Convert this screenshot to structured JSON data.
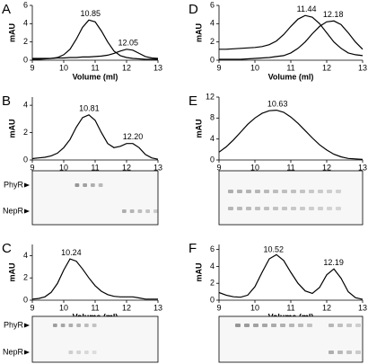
{
  "chart_data": [
    {
      "type": "line",
      "panel": "A",
      "ylabel": "mAU",
      "xlabel": "Volume (ml)",
      "x": [
        9,
        9.2,
        9.4,
        9.6,
        9.8,
        10,
        10.2,
        10.4,
        10.6,
        10.8,
        11,
        11.2,
        11.4,
        11.6,
        11.8,
        12,
        12.2,
        12.4,
        12.6,
        12.8,
        13
      ],
      "series": [
        {
          "color": "#000000",
          "values": [
            0.1,
            0.1,
            0.15,
            0.2,
            0.3,
            0.6,
            1.2,
            2.3,
            3.6,
            4.4,
            4.2,
            3.2,
            2.0,
            1.0,
            0.5,
            0.3,
            0.2,
            0.15,
            0.1,
            0.1,
            0.1
          ]
        },
        {
          "color": "#000000",
          "values": [
            0.2,
            0.2,
            0.2,
            0.2,
            0.25,
            0.25,
            0.3,
            0.3,
            0.35,
            0.35,
            0.4,
            0.45,
            0.55,
            0.75,
            1.0,
            1.2,
            1.1,
            0.75,
            0.4,
            0.25,
            0.2
          ]
        }
      ],
      "xlim": [
        9,
        13
      ],
      "ylim": [
        0,
        6
      ],
      "xticks": [
        9,
        10,
        11,
        12,
        13
      ],
      "yticks": [
        0,
        2,
        4,
        6
      ],
      "peaks": [
        10.85,
        12.05
      ]
    },
    {
      "type": "line",
      "panel": "B",
      "ylabel": "mAU",
      "x": [
        9,
        9.2,
        9.4,
        9.6,
        9.8,
        10,
        10.2,
        10.4,
        10.6,
        10.8,
        11,
        11.2,
        11.4,
        11.6,
        11.8,
        12,
        12.2,
        12.4,
        12.6,
        12.8,
        13
      ],
      "series": [
        {
          "color": "#000000",
          "values": [
            0.1,
            0.15,
            0.2,
            0.3,
            0.5,
            0.9,
            1.5,
            2.4,
            3.1,
            3.3,
            2.9,
            2.0,
            1.2,
            0.9,
            1.0,
            1.2,
            1.2,
            0.9,
            0.4,
            0.15,
            0.05
          ]
        }
      ],
      "xlim": [
        9,
        13
      ],
      "ylim": [
        0,
        4.6
      ],
      "xticks": [
        9,
        10,
        11,
        12,
        13
      ],
      "yticks": [
        0,
        2,
        4
      ],
      "peaks": [
        10.81,
        {
          "value": 12.2,
          "label": "12.20"
        }
      ],
      "gel_labels": [
        "PhyR",
        "NepR"
      ]
    },
    {
      "type": "line",
      "panel": "C",
      "ylabel": "mAU",
      "xlabel": "Volume (ml)",
      "x": [
        9,
        9.2,
        9.4,
        9.6,
        9.8,
        10,
        10.2,
        10.4,
        10.6,
        10.8,
        11,
        11.2,
        11.4,
        11.6,
        11.8,
        12,
        12.2,
        12.4,
        12.6,
        12.8,
        13
      ],
      "series": [
        {
          "color": "#000000",
          "values": [
            0.1,
            0.15,
            0.3,
            0.7,
            1.5,
            2.7,
            3.7,
            3.5,
            2.8,
            2.0,
            1.3,
            0.8,
            0.5,
            0.35,
            0.3,
            0.3,
            0.3,
            0.2,
            0.1,
            0.1,
            0.1
          ]
        }
      ],
      "xlim": [
        9,
        13
      ],
      "ylim": [
        0,
        5
      ],
      "xticks": [
        9,
        10,
        11,
        12,
        13
      ],
      "yticks": [
        0,
        2,
        4
      ],
      "peaks": [
        10.24
      ],
      "gel_labels": [
        "PhyR",
        "NepR"
      ]
    },
    {
      "type": "line",
      "panel": "D",
      "ylabel": "mAU",
      "xlabel": "Volume (ml)",
      "x": [
        9,
        9.2,
        9.4,
        9.6,
        9.8,
        10,
        10.2,
        10.4,
        10.6,
        10.8,
        11,
        11.2,
        11.4,
        11.6,
        11.8,
        12,
        12.2,
        12.4,
        12.6,
        12.8,
        13
      ],
      "series": [
        {
          "color": "#000000",
          "values": [
            1.2,
            1.2,
            1.25,
            1.3,
            1.35,
            1.4,
            1.5,
            1.7,
            2.1,
            2.8,
            3.7,
            4.5,
            4.9,
            4.7,
            4.0,
            3.0,
            2.0,
            1.3,
            0.8,
            0.6,
            0.5
          ]
        },
        {
          "color": "#000000",
          "values": [
            0.1,
            0.1,
            0.1,
            0.1,
            0.15,
            0.2,
            0.25,
            0.3,
            0.4,
            0.5,
            0.8,
            1.3,
            2.0,
            2.9,
            3.7,
            4.2,
            4.3,
            3.9,
            3.0,
            2.0,
            1.2
          ]
        }
      ],
      "xlim": [
        9,
        13
      ],
      "ylim": [
        0,
        6
      ],
      "xticks": [
        9,
        10,
        11,
        12,
        13
      ],
      "yticks": [
        0,
        2,
        4,
        6
      ],
      "peaks": [
        11.44,
        12.18
      ]
    },
    {
      "type": "line",
      "panel": "E",
      "ylabel": "mAU",
      "x": [
        9,
        9.2,
        9.4,
        9.6,
        9.8,
        10,
        10.2,
        10.4,
        10.6,
        10.8,
        11,
        11.2,
        11.4,
        11.6,
        11.8,
        12,
        12.2,
        12.4,
        12.6,
        12.8,
        13
      ],
      "series": [
        {
          "color": "#000000",
          "values": [
            1.5,
            2.5,
            3.8,
            5.3,
            6.8,
            8.0,
            8.9,
            9.4,
            9.5,
            9.1,
            8.2,
            7.0,
            5.6,
            4.2,
            2.9,
            1.9,
            1.1,
            0.6,
            0.3,
            0.2,
            0.1
          ]
        }
      ],
      "xlim": [
        9,
        13
      ],
      "ylim": [
        0,
        12
      ],
      "xticks": [
        9,
        10,
        11,
        12,
        13
      ],
      "yticks": [
        0,
        4,
        8,
        12
      ],
      "peaks": [
        10.63
      ]
    },
    {
      "type": "line",
      "panel": "F",
      "ylabel": "mAU",
      "xlabel": "Volume (ml)",
      "x": [
        9,
        9.2,
        9.4,
        9.6,
        9.8,
        10,
        10.2,
        10.4,
        10.6,
        10.8,
        11,
        11.2,
        11.4,
        11.6,
        11.8,
        12,
        12.2,
        12.4,
        12.6,
        12.8,
        13
      ],
      "series": [
        {
          "color": "#000000",
          "values": [
            0.9,
            0.6,
            0.4,
            0.35,
            0.6,
            1.6,
            3.3,
            4.9,
            5.4,
            4.7,
            3.3,
            2.0,
            1.1,
            0.8,
            1.5,
            3.0,
            3.7,
            2.6,
            1.0,
            0.3,
            0.1
          ]
        }
      ],
      "xlim": [
        9,
        13
      ],
      "ylim": [
        0,
        6.6
      ],
      "xticks": [
        9,
        10,
        11,
        12,
        13
      ],
      "yticks": [
        0,
        2,
        4,
        6
      ],
      "peaks": [
        10.52,
        12.19
      ]
    }
  ]
}
